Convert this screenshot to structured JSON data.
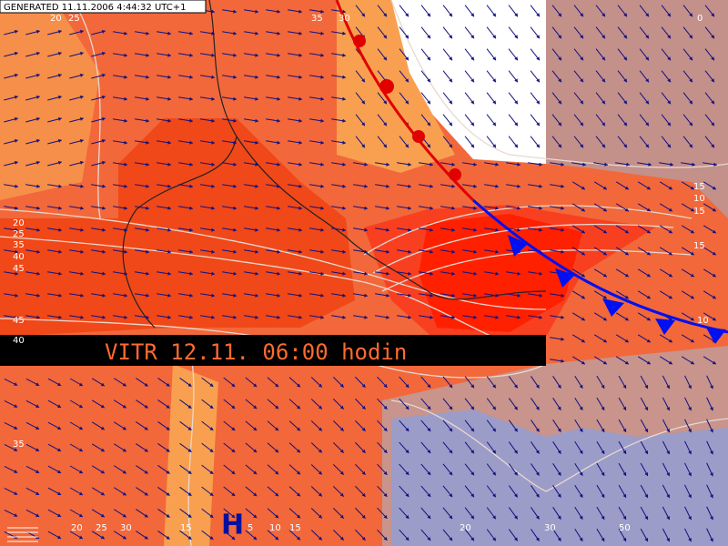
{
  "header": {
    "generated": "GENERATED 11.11.2006 4:44:32 UTC+1"
  },
  "banner": {
    "title": "VITR 12.11. 06:00 hodin"
  },
  "pressure_centre": {
    "label": "H"
  },
  "contour_labels": {
    "left": [
      "20",
      "25",
      "35",
      "40",
      "45",
      "45",
      "40",
      "35"
    ],
    "right": [
      "15",
      "10",
      "15",
      "15",
      "10"
    ],
    "top": [
      "20",
      "25",
      "35",
      "30",
      "0"
    ],
    "bottom": [
      "20",
      "25",
      "30",
      "15",
      "5",
      "10",
      "15",
      "20",
      "30",
      "50"
    ]
  }
}
